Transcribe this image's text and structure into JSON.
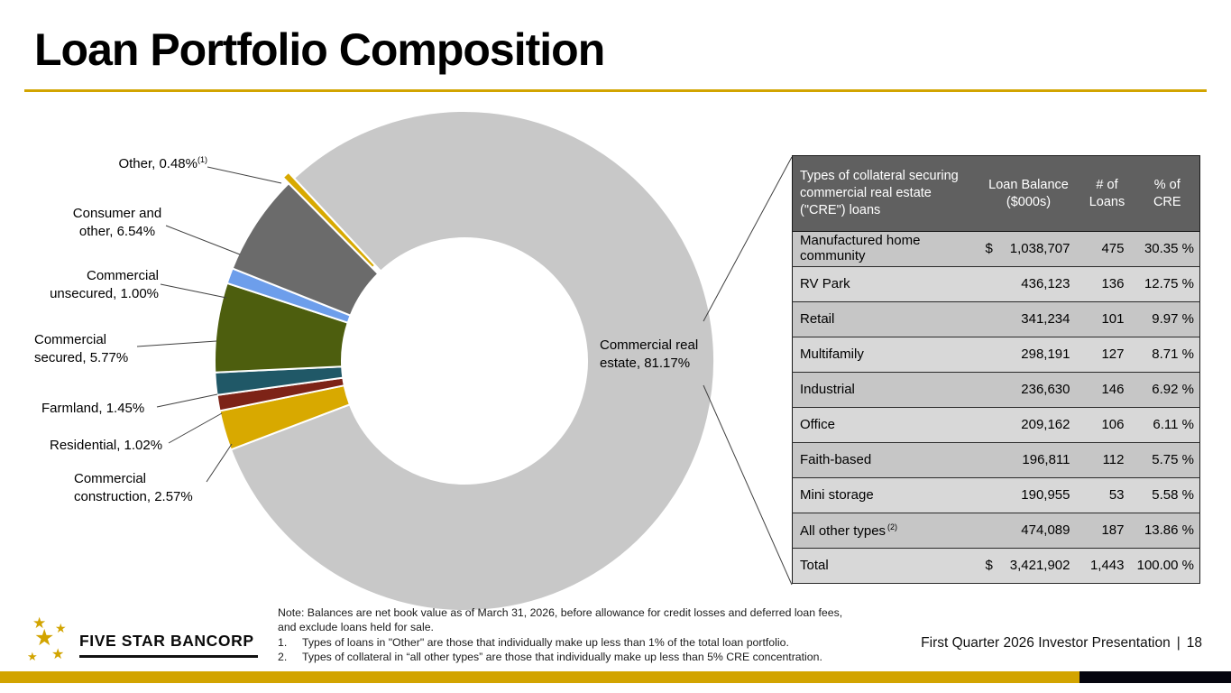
{
  "slide": {
    "title": "Loan Portfolio Composition",
    "logo_text": "FIVE STAR BANCORP",
    "footer_text": "First Quarter 2026 Investor Presentation",
    "footer_separator": "|",
    "page_number": "18"
  },
  "colors": {
    "accent_gold": "#D2A400",
    "bar_black": "#05050F",
    "table_header_bg": "#606060",
    "row_dark": "#C6C6C6",
    "row_light": "#D8D8D8"
  },
  "chart_data": {
    "type": "pie",
    "subtype": "donut",
    "start_angle_deg": -43,
    "unit": "%",
    "slices": [
      {
        "label": "Commercial real estate",
        "value": 81.17,
        "color": "#C8C8C8"
      },
      {
        "label": "Commercial construction",
        "value": 2.57,
        "color": "#D8A900"
      },
      {
        "label": "Residential",
        "value": 1.02,
        "color": "#7D2317"
      },
      {
        "label": "Farmland",
        "value": 1.45,
        "color": "#205867"
      },
      {
        "label": "Commercial secured",
        "value": 5.77,
        "color": "#4D5E0E"
      },
      {
        "label": "Commercial unsecured",
        "value": 1.0,
        "color": "#6D9EEB"
      },
      {
        "label": "Consumer and other",
        "value": 6.54,
        "color": "#6B6B6B"
      },
      {
        "label": "Other",
        "value": 0.48,
        "color": "#D8A900",
        "exploded": true
      }
    ],
    "callouts": {
      "other": "Other, 0.48%",
      "other_sup": "(1)",
      "consumer": "Consumer and\nother, 6.54%",
      "unsecured": "Commercial\nunsecured, 1.00%",
      "secured": "Commercial\nsecured, 5.77%",
      "farmland": "Farmland, 1.45%",
      "residential": "Residential, 1.02%",
      "construction": "Commercial\nconstruction, 2.57%",
      "cre": "Commercial real\nestate, 81.17%"
    }
  },
  "table": {
    "headers": [
      "Types of collateral securing commercial real estate (\"CRE\") loans",
      "Loan Balance ($000s)",
      "# of Loans",
      "% of CRE"
    ],
    "rows": [
      {
        "type": "Manufactured home community",
        "dollar": "$",
        "balance": "1,038,707",
        "loans": "475",
        "pct": "30.35 %"
      },
      {
        "type": "RV Park",
        "dollar": "",
        "balance": "436,123",
        "loans": "136",
        "pct": "12.75 %"
      },
      {
        "type": "Retail",
        "dollar": "",
        "balance": "341,234",
        "loans": "101",
        "pct": "9.97 %"
      },
      {
        "type": "Multifamily",
        "dollar": "",
        "balance": "298,191",
        "loans": "127",
        "pct": "8.71 %"
      },
      {
        "type": "Industrial",
        "dollar": "",
        "balance": "236,630",
        "loans": "146",
        "pct": "6.92 %"
      },
      {
        "type": "Office",
        "dollar": "",
        "balance": "209,162",
        "loans": "106",
        "pct": "6.11 %"
      },
      {
        "type": "Faith-based",
        "dollar": "",
        "balance": "196,811",
        "loans": "112",
        "pct": "5.75 %"
      },
      {
        "type": "Mini storage",
        "dollar": "",
        "balance": "190,955",
        "loans": "53",
        "pct": "5.58 %"
      },
      {
        "type": "All other types",
        "type_sup": "(2)",
        "dollar": "",
        "balance": "474,089",
        "loans": "187",
        "pct": "13.86 %"
      }
    ],
    "total_row": {
      "type": "Total",
      "dollar": "$",
      "balance": "3,421,902",
      "loans": "1,443",
      "pct": "100.00 %"
    }
  },
  "notes": {
    "note": "Note: Balances are net book value as of March 31, 2026, before allowance for credit losses and deferred loan fees, and exclude loans held for sale.",
    "items": [
      {
        "num": "1.",
        "text": "Types of loans in \"Other\" are those that individually make up less than 1% of the total loan portfolio."
      },
      {
        "num": "2.",
        "text": "Types of collateral in “all other types” are those that individually make up less than 5% CRE concentration."
      }
    ]
  }
}
